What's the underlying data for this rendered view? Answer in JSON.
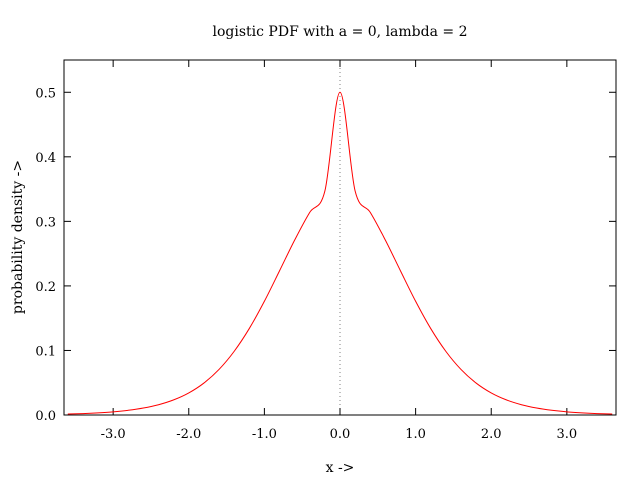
{
  "chart_data": {
    "type": "line",
    "title": "logistic PDF with a = 0, lambda = 2",
    "xlabel": "x ->",
    "ylabel": "probability density ->",
    "xlim": [
      -3.65,
      3.65
    ],
    "ylim": [
      0.0,
      0.55
    ],
    "x_ticks": [
      -3.0,
      -2.0,
      -1.0,
      0.0,
      1.0,
      2.0,
      3.0
    ],
    "x_tick_labels": [
      "-3.0",
      "-2.0",
      "-1.0",
      "0.0",
      "1.0",
      "2.0",
      "3.0"
    ],
    "y_ticks": [
      0.0,
      0.1,
      0.2,
      0.3,
      0.4,
      0.5
    ],
    "y_tick_labels": [
      "0.0",
      "0.1",
      "0.2",
      "0.3",
      "0.4",
      "0.5"
    ],
    "grid": false,
    "legend": "none",
    "reference_line": {
      "x": 0.0,
      "style": "dotted",
      "color": "#808080"
    },
    "series": [
      {
        "color": "#ff0000",
        "x": [
          -3.6,
          -3.4,
          -3.2,
          -3.0,
          -2.8,
          -2.6,
          -2.4,
          -2.2,
          -2.0,
          -1.8,
          -1.6,
          -1.4,
          -1.2,
          -1.0,
          -0.8,
          -0.6,
          -0.4,
          -0.2,
          0.0,
          0.2,
          0.4,
          0.6,
          0.8,
          1.0,
          1.2,
          1.4,
          1.6,
          1.8,
          2.0,
          2.2,
          2.4,
          2.6,
          2.8,
          3.0,
          3.2,
          3.4,
          3.6
        ],
        "y": [
          0.0015,
          0.0022,
          0.0033,
          0.0049,
          0.0073,
          0.0108,
          0.0159,
          0.0234,
          0.0342,
          0.0495,
          0.0706,
          0.0986,
          0.1339,
          0.1762,
          0.2233,
          0.2709,
          0.314,
          0.347,
          0.5,
          0.347,
          0.314,
          0.2709,
          0.2233,
          0.1762,
          0.1339,
          0.0986,
          0.0706,
          0.0495,
          0.0342,
          0.0234,
          0.0159,
          0.0108,
          0.0073,
          0.0049,
          0.0033,
          0.0022,
          0.0015
        ]
      }
    ]
  }
}
